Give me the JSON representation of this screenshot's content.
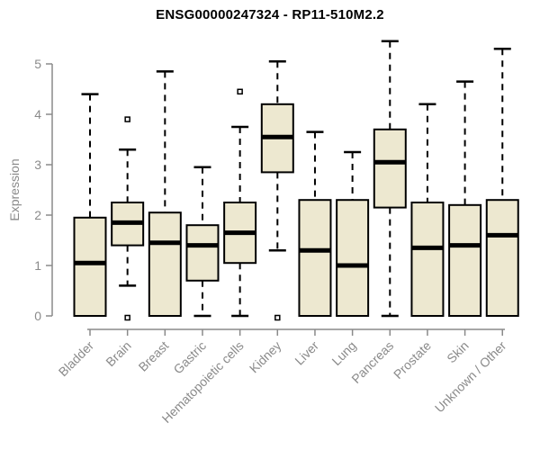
{
  "chart_data": {
    "type": "boxplot",
    "title": "ENSG00000247324 - RP11-510M2.2",
    "ylabel": "Expression",
    "xlabel": "",
    "yticks": [
      0,
      1,
      2,
      3,
      4,
      5
    ],
    "ylim": [
      0,
      5.7
    ],
    "grid": false,
    "legend": "none",
    "categories": [
      "Bladder",
      "Brain",
      "Breast",
      "Gastric",
      "Hematopoietic cells",
      "Kidney",
      "Liver",
      "Lung",
      "Pancreas",
      "Prostate",
      "Skin",
      "Unknown / Other"
    ],
    "series": [
      {
        "name": "Bladder",
        "min": 0,
        "q1": 0,
        "median": 1.05,
        "q3": 1.95,
        "max": 4.4,
        "outliers": []
      },
      {
        "name": "Brain",
        "min": 0.6,
        "q1": 1.4,
        "median": 1.85,
        "q3": 2.25,
        "max": 3.3,
        "outliers": [
          3.9,
          0
        ]
      },
      {
        "name": "Breast",
        "min": 0,
        "q1": 0,
        "median": 1.45,
        "q3": 2.05,
        "max": 4.85,
        "outliers": []
      },
      {
        "name": "Gastric",
        "min": 0,
        "q1": 0.7,
        "median": 1.4,
        "q3": 1.8,
        "max": 2.95,
        "outliers": []
      },
      {
        "name": "Hematopoietic cells",
        "min": 0,
        "q1": 1.05,
        "median": 1.65,
        "q3": 2.25,
        "max": 3.75,
        "outliers": [
          4.45
        ]
      },
      {
        "name": "Kidney",
        "min": 1.3,
        "q1": 2.85,
        "median": 3.55,
        "q3": 4.2,
        "max": 5.05,
        "outliers": [
          0
        ]
      },
      {
        "name": "Liver",
        "min": 0,
        "q1": 0,
        "median": 1.3,
        "q3": 2.3,
        "max": 3.65,
        "outliers": []
      },
      {
        "name": "Lung",
        "min": 0,
        "q1": 0,
        "median": 1.0,
        "q3": 2.3,
        "max": 3.25,
        "outliers": []
      },
      {
        "name": "Pancreas",
        "min": 0,
        "q1": 2.15,
        "median": 3.05,
        "q3": 3.7,
        "max": 5.45,
        "outliers": []
      },
      {
        "name": "Prostate",
        "min": 0,
        "q1": 0,
        "median": 1.35,
        "q3": 2.25,
        "max": 4.2,
        "outliers": []
      },
      {
        "name": "Skin",
        "min": 0,
        "q1": 0,
        "median": 1.4,
        "q3": 2.2,
        "max": 4.65,
        "outliers": []
      },
      {
        "name": "Unknown / Other",
        "min": 0,
        "q1": 0,
        "median": 1.6,
        "q3": 2.3,
        "max": 5.3,
        "outliers": []
      }
    ],
    "colors": {
      "box_fill": "#EDE8D0",
      "box_border": "#000000",
      "median": "#000000",
      "whisker": "#000000",
      "axis": "#8a8a8a",
      "tick_label": "#8a8a8a",
      "title": "#000000",
      "background": "#ffffff"
    }
  }
}
